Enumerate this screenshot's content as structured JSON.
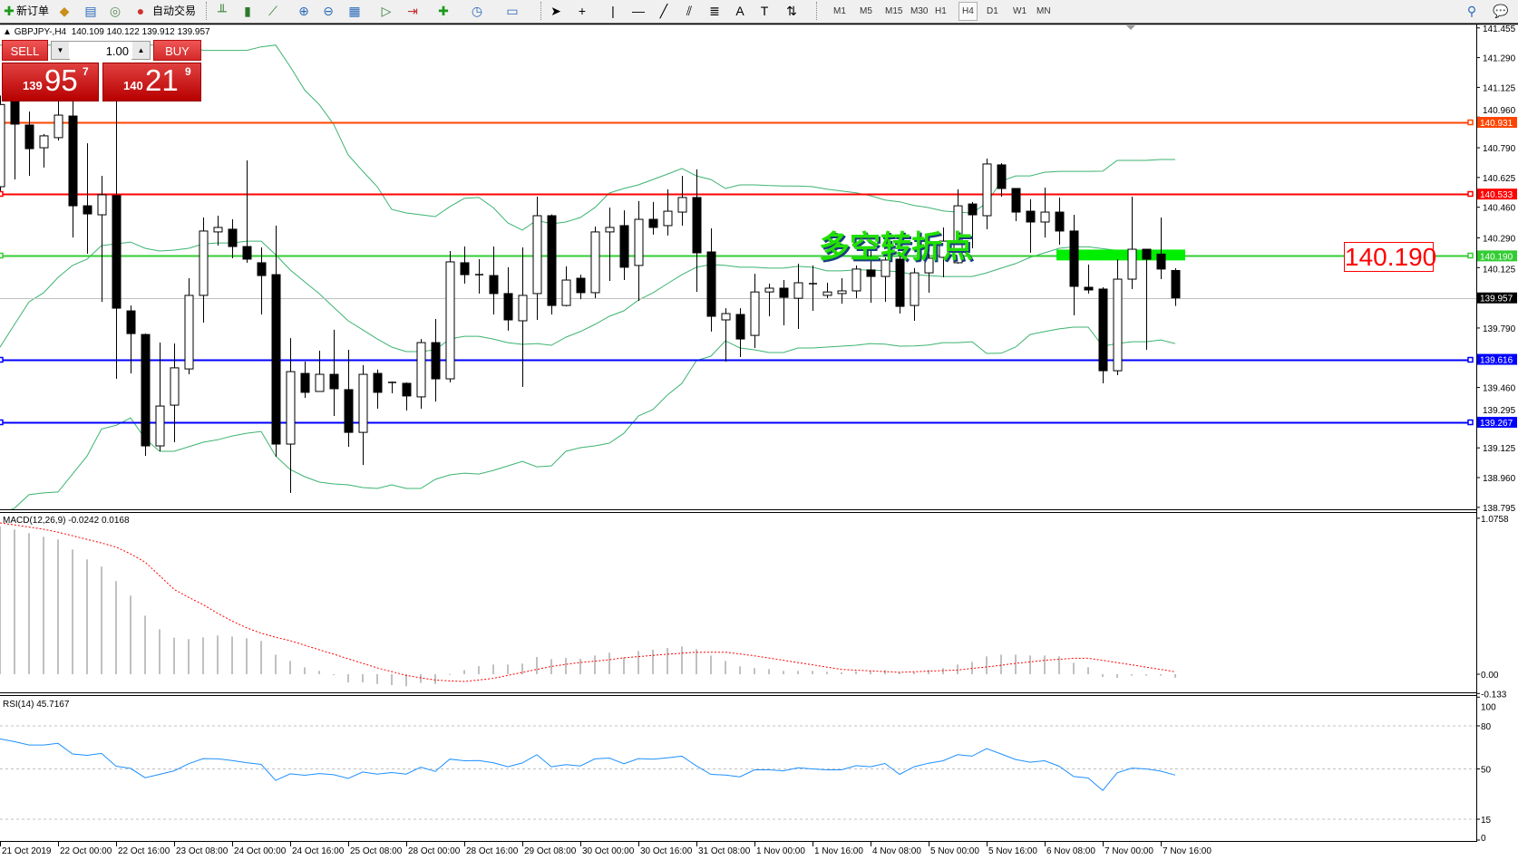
{
  "toolbar": {
    "new_order": "新订单",
    "auto_trading": "自动交易",
    "timeframes": [
      "M1",
      "M5",
      "M15",
      "M30",
      "H1",
      "H4",
      "D1",
      "W1",
      "MN"
    ],
    "active_timeframe": "H4"
  },
  "chart": {
    "symbol_title": "GBPJPY-,H4",
    "ohlc_readout": "140.109 140.122 139.912 139.957",
    "annotation_text": "多空转折点",
    "price_label_box": "140.190"
  },
  "trade_panel": {
    "sell_label": "SELL",
    "buy_label": "BUY",
    "lot_value": "1.00",
    "sell_price": {
      "big": "139",
      "main": "95",
      "sup": "7"
    },
    "buy_price": {
      "big": "140",
      "main": "21",
      "sup": "9"
    }
  },
  "colors": {
    "line_orange": "#ff4500",
    "line_red": "#ff0000",
    "line_green": "#32cd32",
    "line_blue": "#0000ff",
    "bid_line": "#c0c0c0",
    "bollinger": "#3cb371",
    "macd_hist": "#c0c0c0",
    "macd_signal": "#ff0000",
    "rsi": "#1e90ff",
    "pivot_zone": "#00ee00"
  },
  "chart_data": [
    {
      "type": "candlestick",
      "name": "GBPJPY-,H4",
      "time_labels": [
        "21 Oct 2019",
        "22 Oct 00:00",
        "22 Oct 16:00",
        "23 Oct 08:00",
        "24 Oct 00:00",
        "24 Oct 16:00",
        "25 Oct 08:00",
        "28 Oct 00:00",
        "28 Oct 16:00",
        "29 Oct 08:00",
        "30 Oct 00:00",
        "30 Oct 16:00",
        "31 Oct 08:00",
        "1 Nov 00:00",
        "1 Nov 16:00",
        "4 Nov 08:00",
        "5 Nov 00:00",
        "5 Nov 16:00",
        "6 Nov 08:00",
        "7 Nov 00:00",
        "7 Nov 16:00"
      ],
      "ylim": [
        138.78,
        141.47
      ],
      "price_ticks": [
        "141.455",
        "141.290",
        "141.125",
        "140.960",
        "140.790",
        "140.625",
        "140.460",
        "140.290",
        "140.125",
        "139.790",
        "139.460",
        "139.295",
        "139.125",
        "138.960",
        "138.795"
      ],
      "ohlc": [
        [
          140.574,
          141.08,
          140.55,
          141.03
        ],
        [
          141.047,
          141.08,
          140.614,
          140.921
        ],
        [
          140.916,
          140.991,
          140.634,
          140.785
        ],
        [
          140.79,
          140.866,
          140.68,
          140.856
        ],
        [
          140.846,
          141.057,
          140.83,
          140.971
        ],
        [
          140.966,
          141.06,
          140.292,
          140.468
        ],
        [
          140.468,
          140.815,
          140.202,
          140.423
        ],
        [
          140.418,
          140.634,
          139.935,
          140.529
        ],
        [
          140.524,
          141.107,
          139.508,
          139.9
        ],
        [
          139.885,
          139.915,
          139.538,
          139.759
        ],
        [
          139.754,
          139.759,
          139.081,
          139.136
        ],
        [
          139.136,
          139.709,
          139.106,
          139.357
        ],
        [
          139.362,
          139.704,
          139.156,
          139.569
        ],
        [
          139.563,
          140.066,
          139.533,
          139.971
        ],
        [
          139.971,
          140.403,
          139.82,
          140.328
        ],
        [
          140.323,
          140.413,
          140.247,
          140.348
        ],
        [
          140.338,
          140.393,
          140.177,
          140.242
        ],
        [
          140.242,
          140.72,
          140.152,
          140.172
        ],
        [
          140.152,
          140.237,
          139.865,
          140.081
        ],
        [
          140.086,
          140.358,
          139.076,
          139.146
        ],
        [
          139.146,
          139.734,
          138.875,
          139.548
        ],
        [
          139.538,
          139.604,
          139.402,
          139.433
        ],
        [
          139.438,
          139.664,
          139.438,
          139.533
        ],
        [
          139.533,
          139.78,
          139.302,
          139.453
        ],
        [
          139.448,
          139.669,
          139.131,
          139.211
        ],
        [
          139.211,
          139.584,
          139.03,
          139.533
        ],
        [
          139.538,
          139.56,
          139.342,
          139.433
        ],
        [
          139.483,
          139.493,
          139.428,
          139.488
        ],
        [
          139.483,
          139.488,
          139.332,
          139.413
        ],
        [
          139.408,
          139.729,
          139.342,
          139.709
        ],
        [
          139.709,
          139.84,
          139.382,
          139.508
        ],
        [
          139.508,
          140.217,
          139.488,
          140.157
        ],
        [
          140.152,
          140.242,
          140.036,
          140.086
        ],
        [
          140.086,
          140.172,
          139.981,
          140.081
        ],
        [
          140.081,
          140.242,
          139.865,
          139.981
        ],
        [
          139.981,
          140.127,
          139.775,
          139.835
        ],
        [
          139.83,
          140.237,
          139.463,
          139.971
        ],
        [
          139.981,
          140.519,
          139.835,
          140.413
        ],
        [
          140.413,
          140.42,
          139.865,
          139.915
        ],
        [
          139.915,
          140.132,
          139.91,
          140.056
        ],
        [
          140.066,
          140.086,
          139.95,
          139.986
        ],
        [
          139.986,
          140.353,
          139.955,
          140.323
        ],
        [
          140.323,
          140.458,
          140.051,
          140.348
        ],
        [
          140.358,
          140.443,
          140.056,
          140.127
        ],
        [
          140.137,
          140.494,
          139.94,
          140.393
        ],
        [
          140.393,
          140.489,
          140.308,
          140.348
        ],
        [
          140.358,
          140.559,
          140.303,
          140.438
        ],
        [
          140.433,
          140.634,
          140.358,
          140.514
        ],
        [
          140.514,
          140.67,
          139.99,
          140.207
        ],
        [
          140.212,
          140.343,
          139.77,
          139.855
        ],
        [
          139.835,
          139.9,
          139.604,
          139.87
        ],
        [
          139.865,
          139.9,
          139.629,
          139.729
        ],
        [
          139.749,
          140.091,
          139.679,
          139.99
        ],
        [
          139.99,
          140.036,
          139.855,
          140.011
        ],
        [
          140.011,
          140.056,
          139.805,
          139.96
        ],
        [
          139.955,
          140.147,
          139.785,
          140.041
        ],
        [
          140.036,
          140.137,
          139.885,
          140.031
        ],
        [
          139.971,
          140.041,
          139.955,
          139.99
        ],
        [
          139.981,
          140.066,
          139.925,
          139.996
        ],
        [
          139.996,
          140.137,
          139.955,
          140.117
        ],
        [
          140.112,
          140.222,
          139.93,
          140.076
        ],
        [
          140.076,
          140.182,
          139.935,
          140.167
        ],
        [
          140.172,
          140.212,
          139.87,
          139.91
        ],
        [
          139.915,
          140.122,
          139.83,
          140.096
        ],
        [
          140.096,
          140.202,
          139.986,
          140.177
        ],
        [
          140.182,
          140.348,
          140.071,
          140.272
        ],
        [
          140.152,
          140.559,
          140.147,
          140.468
        ],
        [
          140.478,
          140.489,
          140.232,
          140.418
        ],
        [
          140.413,
          140.73,
          140.338,
          140.7
        ],
        [
          140.695,
          140.705,
          140.519,
          140.564
        ],
        [
          140.564,
          140.565,
          140.383,
          140.433
        ],
        [
          140.438,
          140.504,
          140.207,
          140.378
        ],
        [
          140.378,
          140.569,
          140.292,
          140.433
        ],
        [
          140.433,
          140.514,
          140.252,
          140.328
        ],
        [
          140.328,
          140.418,
          139.86,
          140.021
        ],
        [
          140.016,
          140.142,
          139.981,
          140.001
        ],
        [
          140.006,
          140.016,
          139.483,
          139.553
        ],
        [
          139.553,
          140.172,
          139.528,
          140.061
        ],
        [
          140.061,
          140.519,
          140.006,
          140.227
        ],
        [
          140.227,
          140.227,
          139.669,
          140.172
        ],
        [
          140.2,
          140.403,
          140.061,
          140.117
        ],
        [
          140.109,
          140.122,
          139.912,
          139.957
        ]
      ],
      "bollinger": {
        "upper": [
          141.36,
          141.36,
          141.36,
          141.36,
          141.36,
          141.36,
          141.36,
          141.36,
          141.36,
          141.36,
          141.36,
          141.36,
          141.36,
          141.36,
          141.33,
          141.33,
          141.33,
          141.33,
          141.35,
          141.36,
          141.24,
          141.11,
          141.03,
          140.92,
          140.75,
          140.66,
          140.574,
          140.448,
          140.428,
          140.418,
          140.408,
          140.463,
          140.509,
          140.514,
          140.458,
          140.373,
          140.333,
          140.388,
          140.368,
          140.378,
          140.403,
          140.458,
          140.539,
          140.564,
          140.584,
          140.614,
          140.644,
          140.675,
          140.634,
          140.614,
          140.564,
          140.584,
          140.584,
          140.58,
          140.578,
          140.578,
          140.574,
          140.56,
          140.55,
          140.54,
          140.524,
          140.5,
          140.49,
          140.47,
          140.458,
          140.44,
          140.433,
          140.428,
          140.483,
          140.604,
          140.634,
          140.634,
          140.654,
          140.659,
          140.659,
          140.659,
          140.66,
          140.72,
          140.72,
          140.72,
          140.725,
          140.725
        ],
        "middle": [
          139.684,
          139.81,
          139.935,
          139.985,
          140.071,
          140.137,
          140.172,
          140.247,
          140.257,
          140.267,
          140.232,
          140.217,
          140.222,
          140.232,
          140.257,
          140.262,
          140.262,
          140.272,
          140.272,
          140.197,
          140.112,
          140.046,
          139.981,
          139.905,
          139.83,
          139.78,
          139.729,
          139.684,
          139.659,
          139.659,
          139.669,
          139.729,
          139.744,
          139.744,
          139.729,
          139.709,
          139.699,
          139.704,
          139.694,
          139.739,
          139.77,
          139.81,
          139.855,
          139.885,
          139.945,
          139.985,
          140.036,
          140.086,
          140.127,
          140.142,
          140.137,
          140.127,
          140.127,
          140.122,
          140.122,
          140.132,
          140.127,
          140.107,
          140.107,
          140.112,
          140.112,
          140.107,
          140.102,
          140.086,
          140.081,
          140.076,
          140.076,
          140.076,
          140.096,
          140.122,
          140.147,
          140.182,
          140.207,
          140.232,
          140.24,
          140.24,
          140.23,
          140.22,
          140.21,
          140.21,
          140.2,
          140.2
        ],
        "lower": [
          138.76,
          138.79,
          138.865,
          138.875,
          138.88,
          138.98,
          139.08,
          139.23,
          139.25,
          139.291,
          139.176,
          139.106,
          139.106,
          139.131,
          139.156,
          139.17,
          139.191,
          139.206,
          139.216,
          139.08,
          139.005,
          138.965,
          138.935,
          138.925,
          138.92,
          138.905,
          138.9,
          138.92,
          138.9,
          138.9,
          138.95,
          138.975,
          138.985,
          138.98,
          139.0,
          139.025,
          139.05,
          139.02,
          139.025,
          139.106,
          139.126,
          139.136,
          139.151,
          139.206,
          139.302,
          139.337,
          139.418,
          139.483,
          139.609,
          139.634,
          139.719,
          139.679,
          139.669,
          139.654,
          139.654,
          139.679,
          139.679,
          139.684,
          139.689,
          139.694,
          139.704,
          139.7,
          139.689,
          139.69,
          139.695,
          139.709,
          139.709,
          139.714,
          139.649,
          139.65,
          139.684,
          139.754,
          139.77,
          139.785,
          139.795,
          139.795,
          139.689,
          139.704,
          139.714,
          139.714,
          139.724,
          139.704
        ]
      },
      "horizontal_lines": [
        {
          "price": 140.931,
          "label": "140.931",
          "color": "#ff4500"
        },
        {
          "price": 140.533,
          "label": "140.533",
          "color": "#ff0000"
        },
        {
          "price": 140.19,
          "label": "140.190",
          "color": "#32cd32"
        },
        {
          "price": 139.957,
          "label": "139.957",
          "color": "#000000",
          "bid": true
        },
        {
          "price": 139.616,
          "label": "139.616",
          "color": "#0000ff"
        },
        {
          "price": 139.267,
          "label": "139.267",
          "color": "#0000ff"
        }
      ],
      "pivot_zone": {
        "price_low": 140.165,
        "price_high": 140.225
      }
    },
    {
      "type": "bar",
      "title": "MACD(12,26,9) -0.0242 0.0168",
      "ylim": [
        -0.133,
        1.0758
      ],
      "axis_labels": [
        "1.0758",
        "0.00",
        "-0.133"
      ],
      "macd": [
        1.02,
        0.998,
        0.973,
        0.948,
        0.929,
        0.86,
        0.792,
        0.742,
        0.642,
        0.542,
        0.404,
        0.31,
        0.252,
        0.242,
        0.254,
        0.267,
        0.26,
        0.248,
        0.229,
        0.135,
        0.092,
        0.048,
        0.023,
        -0.002,
        -0.056,
        -0.056,
        -0.067,
        -0.075,
        -0.083,
        -0.06,
        -0.067,
        0.002,
        0.029,
        0.056,
        0.067,
        0.067,
        0.073,
        0.119,
        0.104,
        0.113,
        0.106,
        0.129,
        0.148,
        0.117,
        0.16,
        0.169,
        0.181,
        0.192,
        0.173,
        0.129,
        0.092,
        0.054,
        0.042,
        0.035,
        0.023,
        0.023,
        0.023,
        0.017,
        0.013,
        0.021,
        0.023,
        0.029,
        0.013,
        0.013,
        0.029,
        0.042,
        0.067,
        0.085,
        0.123,
        0.135,
        0.135,
        0.129,
        0.129,
        0.123,
        0.079,
        0.048,
        -0.019,
        -0.025,
        -0.01,
        -0.01,
        -0.01,
        -0.0242
      ],
      "signal": [
        1.044,
        1.03,
        1.015,
        1.0,
        0.98,
        0.955,
        0.93,
        0.905,
        0.877,
        0.83,
        0.773,
        0.68,
        0.585,
        0.53,
        0.48,
        0.42,
        0.367,
        0.32,
        0.283,
        0.255,
        0.231,
        0.2,
        0.169,
        0.138,
        0.106,
        0.075,
        0.044,
        0.018,
        -0.008,
        -0.025,
        -0.04,
        -0.046,
        -0.05,
        -0.04,
        -0.029,
        -0.008,
        0.0125,
        0.033,
        0.054,
        0.068,
        0.081,
        0.09,
        0.1,
        0.113,
        0.121,
        0.13,
        0.138,
        0.145,
        0.152,
        0.152,
        0.152,
        0.14,
        0.127,
        0.112,
        0.096,
        0.08,
        0.065,
        0.049,
        0.033,
        0.028,
        0.023,
        0.018,
        0.013,
        0.017,
        0.021,
        0.025,
        0.029,
        0.04,
        0.05,
        0.062,
        0.075,
        0.085,
        0.096,
        0.103,
        0.11,
        0.11,
        0.096,
        0.08,
        0.065,
        0.049,
        0.033,
        0.0168
      ]
    },
    {
      "type": "line",
      "title": "RSI(14) 45.7167",
      "ylim": [
        0,
        100
      ],
      "axis_labels": [
        "100",
        "80",
        "50",
        "15",
        "0"
      ],
      "levels": [
        80,
        50,
        15
      ],
      "values": [
        70.9,
        69,
        66.7,
        66.7,
        67.8,
        60.4,
        59.5,
        60.8,
        51.9,
        50.4,
        43.9,
        46.2,
        48.7,
        53.6,
        57.2,
        57,
        55.9,
        54.4,
        53.2,
        42,
        46.6,
        45.6,
        46.8,
        46,
        43.4,
        47.9,
        46.4,
        47.5,
        46.4,
        51.3,
        48.3,
        56.8,
        55.7,
        55.9,
        54.4,
        51.5,
        54.2,
        59.9,
        51.5,
        53,
        52.1,
        57,
        57.6,
        53.6,
        57.2,
        56.8,
        57.8,
        58.9,
        52.1,
        46.2,
        45.8,
        44.5,
        49.4,
        49.4,
        48.7,
        50.8,
        50,
        49.4,
        49.4,
        52.3,
        51.5,
        53.8,
        46.2,
        51.5,
        54,
        55.7,
        59.9,
        58.9,
        64.2,
        60.4,
        56.6,
        54.7,
        55.7,
        51.9,
        44.7,
        43.7,
        35,
        47.3,
        50.6,
        50,
        48.5,
        45.7167
      ]
    }
  ]
}
